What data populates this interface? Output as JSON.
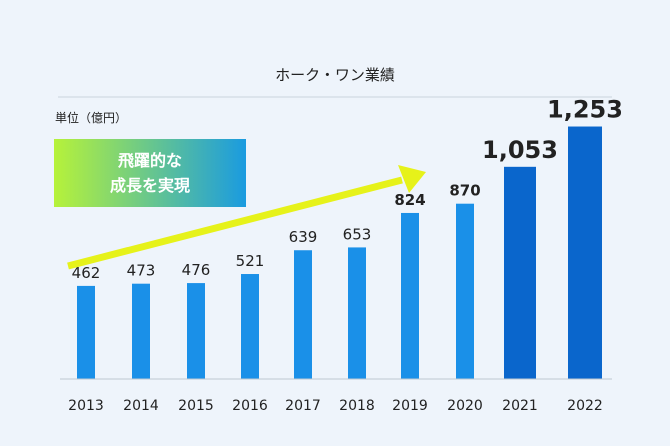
{
  "chart_data": {
    "type": "bar",
    "title": "ホーク・ワン業績",
    "unit_label": "単位（億円）",
    "banner_lines": [
      "飛躍的な",
      "成長を実現"
    ],
    "categories": [
      "2013",
      "2014",
      "2015",
      "2016",
      "2017",
      "2018",
      "2019",
      "2020",
      "2021",
      "2022"
    ],
    "values": [
      462,
      473,
      476,
      521,
      639,
      653,
      824,
      870,
      1053,
      1253
    ],
    "value_labels": [
      "462",
      "473",
      "476",
      "521",
      "639",
      "653",
      "824",
      "870",
      "1,053",
      "1,253"
    ],
    "ylim": [
      0,
      1300
    ],
    "grid": false,
    "colors": {
      "bar": "#1a90e8",
      "bar_highlight": "#0a66cc",
      "highlight_label": "#1a6fd6",
      "arrow": "#e6f21a",
      "banner_start": "#b6f23a",
      "banner_end": "#1a9be0"
    }
  }
}
